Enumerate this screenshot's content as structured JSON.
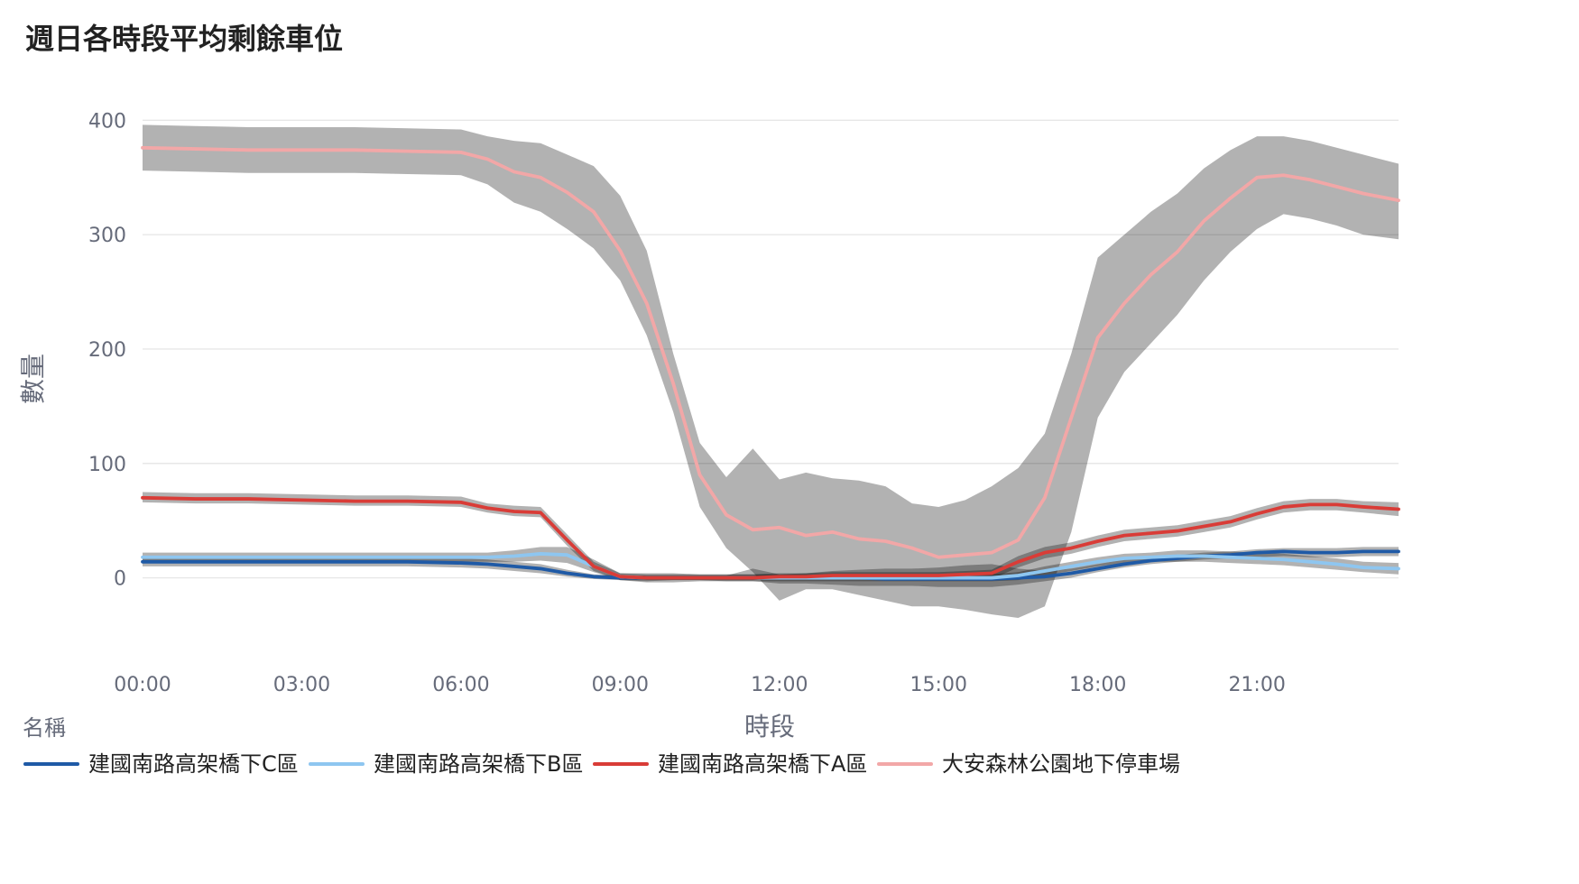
{
  "chart_data": {
    "type": "line",
    "title": "週日各時段平均剩餘車位",
    "xlabel": "時段",
    "ylabel": "數量",
    "ylim": [
      -80,
      420
    ],
    "grid": true,
    "legend": {
      "title": "名稱",
      "placement": "bottom-left"
    },
    "x_ticks": [
      "00:00",
      "03:00",
      "06:00",
      "09:00",
      "12:00",
      "15:00",
      "18:00",
      "21:00"
    ],
    "y_ticks": [
      0,
      100,
      200,
      300,
      400
    ],
    "x": [
      "00:00",
      "01:00",
      "02:00",
      "03:00",
      "04:00",
      "05:00",
      "06:00",
      "06:30",
      "07:00",
      "07:30",
      "08:00",
      "08:30",
      "09:00",
      "09:30",
      "10:00",
      "10:30",
      "11:00",
      "11:30",
      "12:00",
      "12:30",
      "13:00",
      "13:30",
      "14:00",
      "14:30",
      "15:00",
      "15:30",
      "16:00",
      "16:30",
      "17:00",
      "17:30",
      "18:00",
      "18:30",
      "19:00",
      "19:30",
      "20:00",
      "20:30",
      "21:00",
      "21:30",
      "22:00",
      "22:30",
      "23:00",
      "23:40"
    ],
    "series": [
      {
        "name": "建國南路高架橋下C區",
        "color": "#1f5aa6",
        "values": [
          14,
          14,
          14,
          14,
          14,
          14,
          13,
          12,
          10,
          8,
          4,
          1,
          0,
          0,
          0,
          0,
          0,
          0,
          0,
          0,
          0,
          0,
          -1,
          -1,
          -1,
          -1,
          -1,
          0,
          1,
          4,
          8,
          12,
          15,
          17,
          19,
          20,
          22,
          23,
          22,
          22,
          23,
          23
        ],
        "band_low": [
          10,
          10,
          10,
          10,
          10,
          10,
          9,
          8,
          6,
          4,
          1,
          -1,
          -2,
          -2,
          -2,
          -2,
          -3,
          -3,
          -5,
          -5,
          -6,
          -7,
          -7,
          -7,
          -8,
          -8,
          -8,
          -6,
          -3,
          0,
          5,
          9,
          12,
          14,
          16,
          17,
          18,
          19,
          18,
          18,
          19,
          19
        ],
        "band_high": [
          18,
          18,
          18,
          18,
          18,
          18,
          17,
          16,
          14,
          12,
          7,
          3,
          2,
          2,
          2,
          2,
          2,
          8,
          3,
          4,
          6,
          7,
          8,
          8,
          9,
          11,
          12,
          8,
          6,
          8,
          12,
          16,
          18,
          20,
          22,
          23,
          25,
          26,
          26,
          26,
          27,
          27
        ]
      },
      {
        "name": "建國南路高架橋下B區",
        "color": "#8ec6f0",
        "values": [
          18,
          18,
          18,
          18,
          18,
          18,
          18,
          18,
          19,
          21,
          20,
          10,
          1,
          0,
          0,
          0,
          0,
          0,
          0,
          0,
          0,
          0,
          0,
          0,
          0,
          0,
          0,
          2,
          6,
          10,
          14,
          17,
          18,
          19,
          19,
          18,
          17,
          16,
          14,
          12,
          9,
          8
        ],
        "band_low": [
          14,
          14,
          14,
          14,
          14,
          14,
          14,
          14,
          14,
          15,
          13,
          5,
          -2,
          -4,
          -4,
          -3,
          -3,
          -3,
          -3,
          -3,
          -3,
          -3,
          -3,
          -3,
          -3,
          -3,
          -3,
          -2,
          2,
          6,
          10,
          13,
          14,
          14,
          14,
          13,
          12,
          11,
          9,
          7,
          5,
          3
        ],
        "band_high": [
          22,
          22,
          22,
          22,
          22,
          22,
          22,
          22,
          24,
          27,
          27,
          16,
          4,
          4,
          4,
          3,
          3,
          3,
          3,
          3,
          3,
          3,
          3,
          3,
          3,
          3,
          3,
          5,
          10,
          14,
          18,
          21,
          22,
          24,
          24,
          23,
          22,
          21,
          19,
          17,
          14,
          13
        ]
      },
      {
        "name": "建國南路高架橋下A區",
        "color": "#d93c37",
        "values": [
          70,
          69,
          69,
          68,
          67,
          67,
          66,
          61,
          58,
          57,
          33,
          10,
          1,
          0,
          0,
          0,
          0,
          0,
          1,
          1,
          2,
          2,
          2,
          2,
          2,
          3,
          4,
          14,
          22,
          26,
          32,
          37,
          39,
          41,
          45,
          49,
          56,
          62,
          64,
          64,
          62,
          60
        ],
        "band_low": [
          66,
          65,
          65,
          64,
          63,
          63,
          62,
          57,
          54,
          53,
          28,
          6,
          -2,
          -3,
          -2,
          -2,
          -2,
          -2,
          -1,
          -1,
          -1,
          -1,
          -1,
          -1,
          -1,
          -1,
          -1,
          9,
          17,
          21,
          27,
          32,
          34,
          36,
          40,
          44,
          51,
          57,
          59,
          59,
          57,
          54
        ],
        "band_high": [
          75,
          74,
          74,
          73,
          72,
          72,
          71,
          65,
          63,
          62,
          38,
          14,
          4,
          3,
          3,
          3,
          3,
          3,
          4,
          4,
          5,
          5,
          5,
          5,
          5,
          6,
          7,
          19,
          27,
          31,
          37,
          42,
          44,
          46,
          50,
          54,
          61,
          67,
          69,
          69,
          67,
          66
        ]
      },
      {
        "name": "大安森林公園地下停車場",
        "color": "#f2a7a7",
        "values": [
          376,
          375,
          374,
          374,
          374,
          373,
          372,
          366,
          355,
          350,
          337,
          320,
          286,
          240,
          170,
          90,
          55,
          42,
          44,
          37,
          40,
          34,
          32,
          26,
          18,
          20,
          22,
          33,
          70,
          140,
          210,
          240,
          265,
          285,
          312,
          332,
          350,
          352,
          348,
          342,
          336,
          330
        ],
        "band_low": [
          356,
          355,
          354,
          354,
          354,
          353,
          352,
          344,
          328,
          320,
          305,
          288,
          260,
          212,
          145,
          62,
          26,
          5,
          -20,
          -10,
          -10,
          -15,
          -20,
          -25,
          -25,
          -28,
          -32,
          -35,
          -25,
          40,
          140,
          180,
          205,
          230,
          260,
          285,
          305,
          318,
          314,
          308,
          300,
          296
        ],
        "band_high": [
          396,
          395,
          394,
          394,
          394,
          393,
          392,
          386,
          382,
          380,
          370,
          360,
          334,
          286,
          196,
          118,
          88,
          113,
          86,
          92,
          87,
          85,
          80,
          65,
          62,
          68,
          80,
          96,
          126,
          196,
          280,
          300,
          320,
          336,
          358,
          374,
          386,
          386,
          382,
          376,
          370,
          362
        ]
      }
    ]
  }
}
